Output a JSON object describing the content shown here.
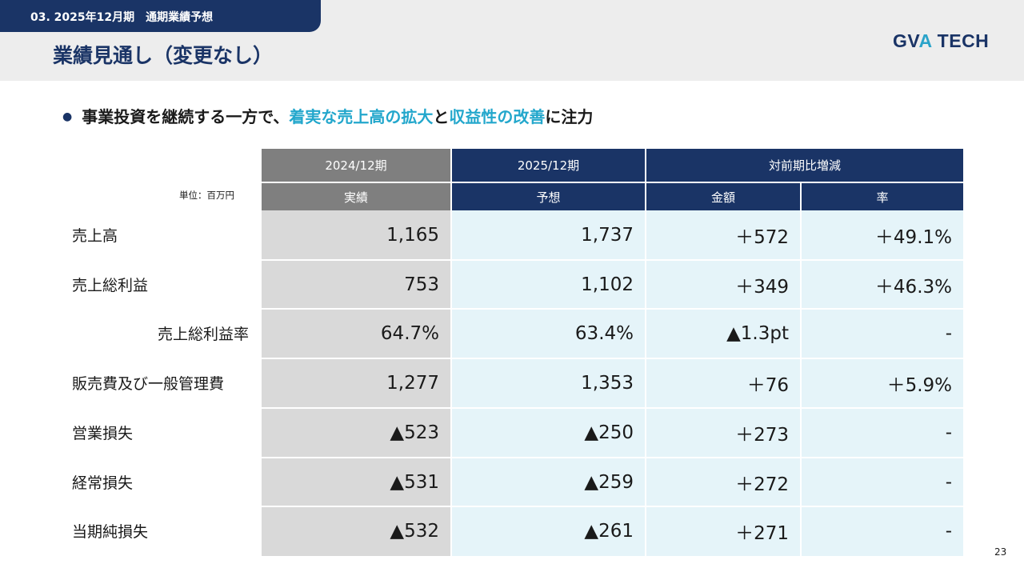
{
  "header": {
    "section_tab": "03. 2025年12月期　通期業績予想",
    "title": "業績見通し（変更なし）",
    "logo_main": "GV",
    "logo_accent": "A",
    "logo_rest": " TECH"
  },
  "headline": {
    "bullet": "●",
    "part1": "事業投資を継続する一方で、",
    "highlight1": "着実な売上高の拡大",
    "part2": "と",
    "highlight2": "収益性の改善",
    "part3": "に注力"
  },
  "table": {
    "unit": "単位：百万円",
    "group_headers": {
      "prev": "2024/12期",
      "forecast": "2025/12期",
      "change": "対前期比増減"
    },
    "sub_headers": {
      "actual": "実績",
      "forecast": "予想",
      "amount": "金額",
      "rate": "率"
    },
    "rows": [
      {
        "label": "売上高",
        "actual": "1,165",
        "forecast": "1,737",
        "amount": "＋572",
        "rate": "＋49.1%"
      },
      {
        "label": "売上総利益",
        "actual": "753",
        "forecast": "1,102",
        "amount": "＋349",
        "rate": "＋46.3%"
      },
      {
        "label": "売上総利益率",
        "actual": "64.7%",
        "forecast": "63.4%",
        "amount": "▲1.3pt",
        "rate": "-"
      },
      {
        "label": "販売費及び一般管理費",
        "actual": "1,277",
        "forecast": "1,353",
        "amount": "＋76",
        "rate": "＋5.9%"
      },
      {
        "label": "営業損失",
        "actual": "▲523",
        "forecast": "▲250",
        "amount": "＋273",
        "rate": "-"
      },
      {
        "label": "経常損失",
        "actual": "▲531",
        "forecast": "▲259",
        "amount": "＋272",
        "rate": "-"
      },
      {
        "label": "当期純損失",
        "actual": "▲532",
        "forecast": "▲261",
        "amount": "＋271",
        "rate": "-"
      }
    ]
  },
  "page_number": "23",
  "colors": {
    "navy": "#1a3466",
    "accent": "#23a7cc",
    "gray_header": "#7f7f7f",
    "actual_bg": "#d9d9d9",
    "forecast_bg": "#e5f4f9"
  }
}
